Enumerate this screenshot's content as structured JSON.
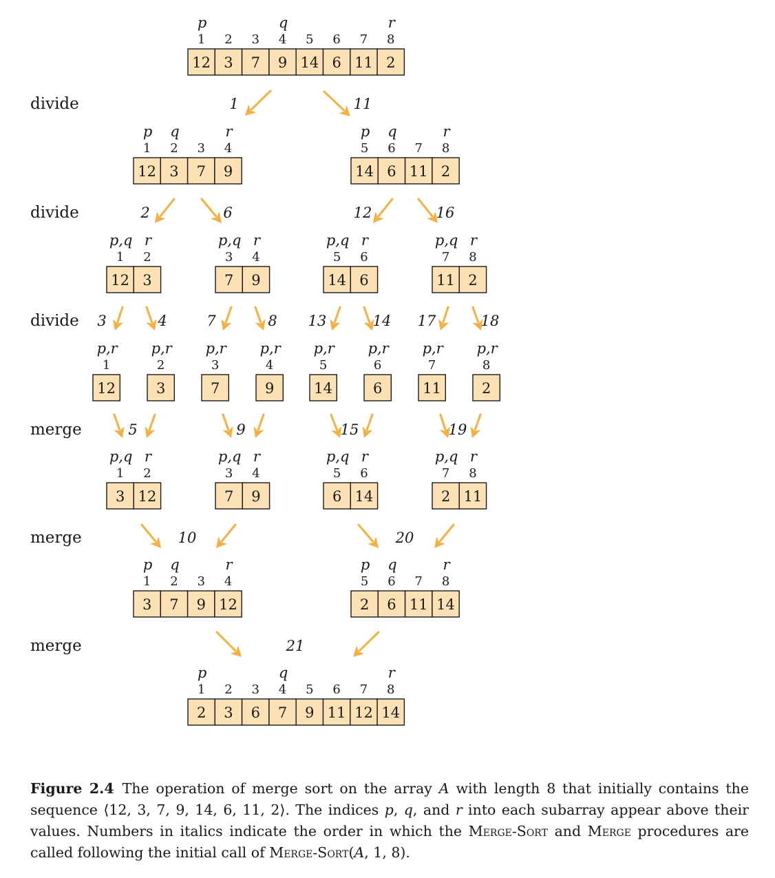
{
  "phase_labels": [
    "divide",
    "divide",
    "divide",
    "merge",
    "merge",
    "merge"
  ],
  "pointer_labels": {
    "p": "p",
    "q": "q",
    "r": "r",
    "pq": "p,q",
    "pr": "p,r"
  },
  "arrays": [
    {
      "id": "root",
      "values": [
        "12",
        "3",
        "7",
        "9",
        "14",
        "6",
        "11",
        "2"
      ],
      "indices": [
        "1",
        "2",
        "3",
        "4",
        "5",
        "6",
        "7",
        "8"
      ],
      "pointers": [
        {
          "label": "p",
          "at": 0
        },
        {
          "label": "q",
          "at": 3
        },
        {
          "label": "r",
          "at": 7
        }
      ]
    },
    {
      "id": "L",
      "values": [
        "12",
        "3",
        "7",
        "9"
      ],
      "indices": [
        "1",
        "2",
        "3",
        "4"
      ],
      "pointers": [
        {
          "label": "p",
          "at": 0
        },
        {
          "label": "q",
          "at": 1
        },
        {
          "label": "r",
          "at": 3
        }
      ]
    },
    {
      "id": "R",
      "values": [
        "14",
        "6",
        "11",
        "2"
      ],
      "indices": [
        "5",
        "6",
        "7",
        "8"
      ],
      "pointers": [
        {
          "label": "p",
          "at": 0
        },
        {
          "label": "q",
          "at": 1
        },
        {
          "label": "r",
          "at": 3
        }
      ]
    },
    {
      "id": "LL",
      "values": [
        "12",
        "3"
      ],
      "indices": [
        "1",
        "2"
      ],
      "pointers": [
        {
          "label": "pq",
          "at": 0
        },
        {
          "label": "r",
          "at": 1
        }
      ]
    },
    {
      "id": "LR",
      "values": [
        "7",
        "9"
      ],
      "indices": [
        "3",
        "4"
      ],
      "pointers": [
        {
          "label": "pq",
          "at": 0
        },
        {
          "label": "r",
          "at": 1
        }
      ]
    },
    {
      "id": "RL",
      "values": [
        "14",
        "6"
      ],
      "indices": [
        "5",
        "6"
      ],
      "pointers": [
        {
          "label": "pq",
          "at": 0
        },
        {
          "label": "r",
          "at": 1
        }
      ]
    },
    {
      "id": "RR",
      "values": [
        "11",
        "2"
      ],
      "indices": [
        "7",
        "8"
      ],
      "pointers": [
        {
          "label": "pq",
          "at": 0
        },
        {
          "label": "r",
          "at": 1
        }
      ]
    },
    {
      "id": "s1",
      "values": [
        "12"
      ],
      "indices": [
        "1"
      ],
      "pointers": [
        {
          "label": "pr",
          "at": 0
        }
      ]
    },
    {
      "id": "s2",
      "values": [
        "3"
      ],
      "indices": [
        "2"
      ],
      "pointers": [
        {
          "label": "pr",
          "at": 0
        }
      ]
    },
    {
      "id": "s3",
      "values": [
        "7"
      ],
      "indices": [
        "3"
      ],
      "pointers": [
        {
          "label": "pr",
          "at": 0
        }
      ]
    },
    {
      "id": "s4",
      "values": [
        "9"
      ],
      "indices": [
        "4"
      ],
      "pointers": [
        {
          "label": "pr",
          "at": 0
        }
      ]
    },
    {
      "id": "s5",
      "values": [
        "14"
      ],
      "indices": [
        "5"
      ],
      "pointers": [
        {
          "label": "pr",
          "at": 0
        }
      ]
    },
    {
      "id": "s6",
      "values": [
        "6"
      ],
      "indices": [
        "6"
      ],
      "pointers": [
        {
          "label": "pr",
          "at": 0
        }
      ]
    },
    {
      "id": "s7",
      "values": [
        "11"
      ],
      "indices": [
        "7"
      ],
      "pointers": [
        {
          "label": "pr",
          "at": 0
        }
      ]
    },
    {
      "id": "s8",
      "values": [
        "2"
      ],
      "indices": [
        "8"
      ],
      "pointers": [
        {
          "label": "pr",
          "at": 0
        }
      ]
    },
    {
      "id": "mLL",
      "values": [
        "3",
        "12"
      ],
      "indices": [
        "1",
        "2"
      ],
      "pointers": [
        {
          "label": "pq",
          "at": 0
        },
        {
          "label": "r",
          "at": 1
        }
      ]
    },
    {
      "id": "mLR",
      "values": [
        "7",
        "9"
      ],
      "indices": [
        "3",
        "4"
      ],
      "pointers": [
        {
          "label": "pq",
          "at": 0
        },
        {
          "label": "r",
          "at": 1
        }
      ]
    },
    {
      "id": "mRL",
      "values": [
        "6",
        "14"
      ],
      "indices": [
        "5",
        "6"
      ],
      "pointers": [
        {
          "label": "pq",
          "at": 0
        },
        {
          "label": "r",
          "at": 1
        }
      ]
    },
    {
      "id": "mRR",
      "values": [
        "2",
        "11"
      ],
      "indices": [
        "7",
        "8"
      ],
      "pointers": [
        {
          "label": "pq",
          "at": 0
        },
        {
          "label": "r",
          "at": 1
        }
      ]
    },
    {
      "id": "mL",
      "values": [
        "3",
        "7",
        "9",
        "12"
      ],
      "indices": [
        "1",
        "2",
        "3",
        "4"
      ],
      "pointers": [
        {
          "label": "p",
          "at": 0
        },
        {
          "label": "q",
          "at": 1
        },
        {
          "label": "r",
          "at": 3
        }
      ]
    },
    {
      "id": "mR",
      "values": [
        "2",
        "6",
        "11",
        "14"
      ],
      "indices": [
        "5",
        "6",
        "7",
        "8"
      ],
      "pointers": [
        {
          "label": "p",
          "at": 0
        },
        {
          "label": "q",
          "at": 1
        },
        {
          "label": "r",
          "at": 3
        }
      ]
    },
    {
      "id": "final",
      "values": [
        "2",
        "3",
        "6",
        "7",
        "9",
        "11",
        "12",
        "14"
      ],
      "indices": [
        "1",
        "2",
        "3",
        "4",
        "5",
        "6",
        "7",
        "8"
      ],
      "pointers": [
        {
          "label": "p",
          "at": 0
        },
        {
          "label": "q",
          "at": 3
        },
        {
          "label": "r",
          "at": 7
        }
      ]
    }
  ],
  "steps": [
    "1",
    "2",
    "3",
    "4",
    "5",
    "6",
    "7",
    "8",
    "9",
    "10",
    "11",
    "12",
    "13",
    "14",
    "15",
    "16",
    "17",
    "18",
    "19",
    "20",
    "21"
  ],
  "caption": {
    "label": "Figure 2.4",
    "t1": "The operation of merge sort on the array ",
    "A": "A",
    "t2": " with length 8 that initially contains the sequence ⟨12, 3, 7, 9, 14, 6, 11, 2⟩. The indices ",
    "p": "p",
    "t3": ", ",
    "q": "q",
    "t4": ", and ",
    "r": "r",
    "t5": " into each subarray appear above their values. Numbers in italics indicate the order in which the ",
    "merge_sort": "Merge-Sort",
    "t6": " and ",
    "merge": "Merge",
    "t7": " procedures are called following the initial call of ",
    "merge_sort2": "Merge-Sort",
    "t8": "(",
    "A2": "A",
    "t9": ", 1, 8)."
  }
}
